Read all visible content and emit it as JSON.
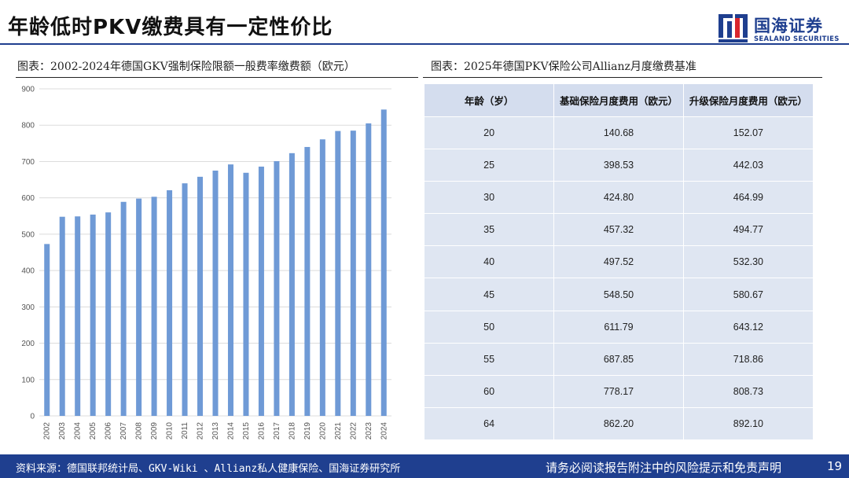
{
  "header": {
    "title": "年龄低时PKV缴费具有一定性价比",
    "logo": {
      "cn": "国海证券",
      "en": "SEALAND SECURITIES",
      "color": "#1f3f8f"
    }
  },
  "left_panel": {
    "caption": "图表：2002-2024年德国GKV强制保险限额一般费率缴费额（欧元）"
  },
  "right_panel": {
    "caption": "图表：2025年德国PKV保险公司Allianz月度缴费基准",
    "table": {
      "headers": [
        "年龄（岁）",
        "基础保险月度费用（欧元）",
        "升级保险月度费用（欧元）"
      ],
      "rows": [
        [
          "20",
          "140.68",
          "152.07"
        ],
        [
          "25",
          "398.53",
          "442.03"
        ],
        [
          "30",
          "424.80",
          "464.99"
        ],
        [
          "35",
          "457.32",
          "494.77"
        ],
        [
          "40",
          "497.52",
          "532.30"
        ],
        [
          "45",
          "548.50",
          "580.67"
        ],
        [
          "50",
          "611.79",
          "643.12"
        ],
        [
          "55",
          "687.85",
          "718.86"
        ],
        [
          "60",
          "778.17",
          "808.73"
        ],
        [
          "64",
          "862.20",
          "892.10"
        ]
      ]
    }
  },
  "chart_data": {
    "type": "bar",
    "categories": [
      "2002",
      "2003",
      "2004",
      "2005",
      "2006",
      "2007",
      "2008",
      "2009",
      "2010",
      "2011",
      "2012",
      "2013",
      "2014",
      "2015",
      "2016",
      "2017",
      "2018",
      "2019",
      "2020",
      "2021",
      "2022",
      "2023",
      "2024"
    ],
    "values": [
      473,
      548,
      549,
      554,
      560,
      589,
      598,
      603,
      621,
      640,
      658,
      675,
      692,
      669,
      686,
      701,
      723,
      740,
      761,
      784,
      785,
      805,
      843
    ],
    "ylim": [
      0,
      900
    ],
    "yticks": [
      0,
      100,
      200,
      300,
      400,
      500,
      600,
      700,
      800,
      900
    ],
    "grid": true,
    "bar_color": "#6f9ad6",
    "grid_color": "#dcdcdc",
    "tick_label_color": "#555555"
  },
  "footer": {
    "source": "资料来源：德国联邦统计局、GKV-Wiki 、Allianz私人健康保险、国海证券研究所",
    "disclaimer": "请务必阅读报告附注中的风险提示和免责声明",
    "page_number": "19",
    "bg_color": "#1f3f8f"
  }
}
